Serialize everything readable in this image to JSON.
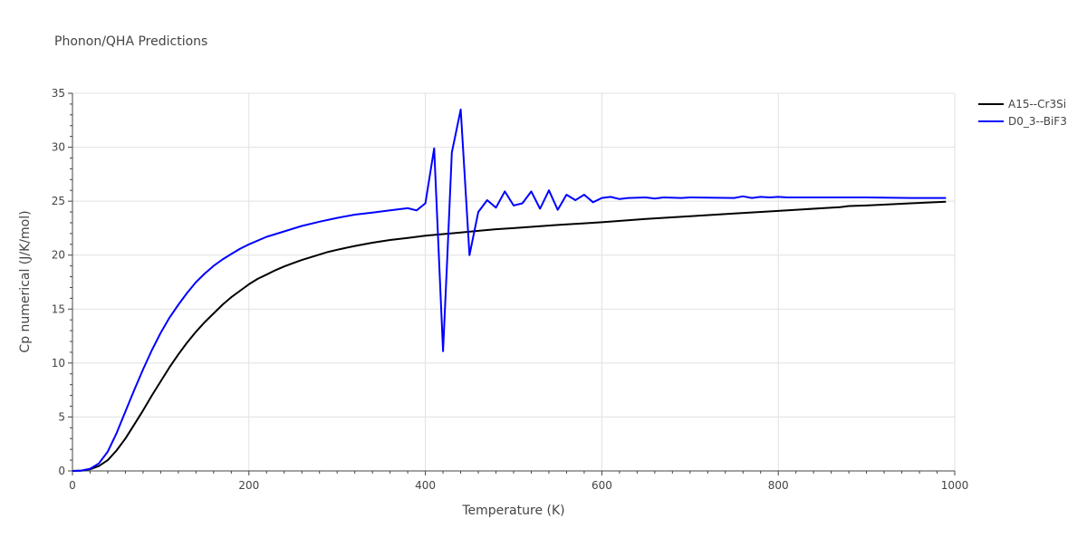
{
  "chart_data": {
    "type": "line",
    "title": "Phonon/QHA Predictions",
    "xlabel": "Temperature (K)",
    "ylabel": "Cp numerical (J/K/mol)",
    "xlim": [
      0,
      1000
    ],
    "ylim": [
      0,
      35
    ],
    "x_ticks": [
      0,
      200,
      400,
      600,
      800,
      1000
    ],
    "y_ticks": [
      0,
      5,
      10,
      15,
      20,
      25,
      30,
      35
    ],
    "grid": true,
    "legend_position": "top-right",
    "series": [
      {
        "name": "A15--Cr3Si",
        "color": "#000000",
        "x": [
          0,
          10,
          20,
          30,
          40,
          50,
          60,
          70,
          80,
          90,
          100,
          110,
          120,
          130,
          140,
          150,
          160,
          170,
          180,
          190,
          200,
          210,
          220,
          230,
          240,
          250,
          260,
          270,
          280,
          290,
          300,
          320,
          340,
          360,
          380,
          400,
          420,
          440,
          460,
          480,
          500,
          550,
          600,
          650,
          700,
          750,
          800,
          850,
          870,
          880,
          900,
          950,
          990
        ],
        "y": [
          0,
          0.02,
          0.15,
          0.45,
          1.0,
          1.9,
          3.0,
          4.3,
          5.6,
          7.0,
          8.3,
          9.6,
          10.8,
          11.9,
          12.9,
          13.8,
          14.6,
          15.4,
          16.1,
          16.7,
          17.3,
          17.8,
          18.2,
          18.6,
          18.95,
          19.25,
          19.55,
          19.8,
          20.05,
          20.3,
          20.5,
          20.85,
          21.15,
          21.4,
          21.6,
          21.8,
          21.95,
          22.1,
          22.25,
          22.4,
          22.5,
          22.8,
          23.05,
          23.35,
          23.6,
          23.85,
          24.1,
          24.35,
          24.45,
          24.55,
          24.6,
          24.8,
          24.95
        ]
      },
      {
        "name": "D0_3--BiF3",
        "color": "#0000ff",
        "x": [
          0,
          10,
          20,
          30,
          40,
          50,
          60,
          70,
          80,
          90,
          100,
          110,
          120,
          130,
          140,
          150,
          160,
          170,
          180,
          190,
          200,
          220,
          240,
          260,
          280,
          300,
          320,
          340,
          360,
          380,
          390,
          400,
          410,
          420,
          425,
          430,
          440,
          450,
          460,
          470,
          480,
          490,
          500,
          510,
          520,
          530,
          540,
          550,
          560,
          570,
          580,
          590,
          600,
          610,
          620,
          630,
          650,
          660,
          670,
          690,
          700,
          750,
          760,
          770,
          780,
          790,
          800,
          810,
          850,
          900,
          950,
          990
        ],
        "y": [
          0,
          0.03,
          0.2,
          0.7,
          1.8,
          3.5,
          5.5,
          7.5,
          9.4,
          11.2,
          12.8,
          14.2,
          15.4,
          16.5,
          17.5,
          18.3,
          19.0,
          19.6,
          20.1,
          20.6,
          21.0,
          21.7,
          22.2,
          22.7,
          23.1,
          23.45,
          23.75,
          23.95,
          24.15,
          24.35,
          24.15,
          24.8,
          29.9,
          11.1,
          20.0,
          29.5,
          33.5,
          20.0,
          24.0,
          25.1,
          24.4,
          25.9,
          24.6,
          24.8,
          25.9,
          24.3,
          26.0,
          24.2,
          25.6,
          25.1,
          25.6,
          24.9,
          25.3,
          25.4,
          25.2,
          25.3,
          25.35,
          25.25,
          25.35,
          25.3,
          25.35,
          25.3,
          25.45,
          25.3,
          25.4,
          25.35,
          25.4,
          25.35,
          25.35,
          25.35,
          25.3,
          25.3
        ]
      }
    ]
  }
}
